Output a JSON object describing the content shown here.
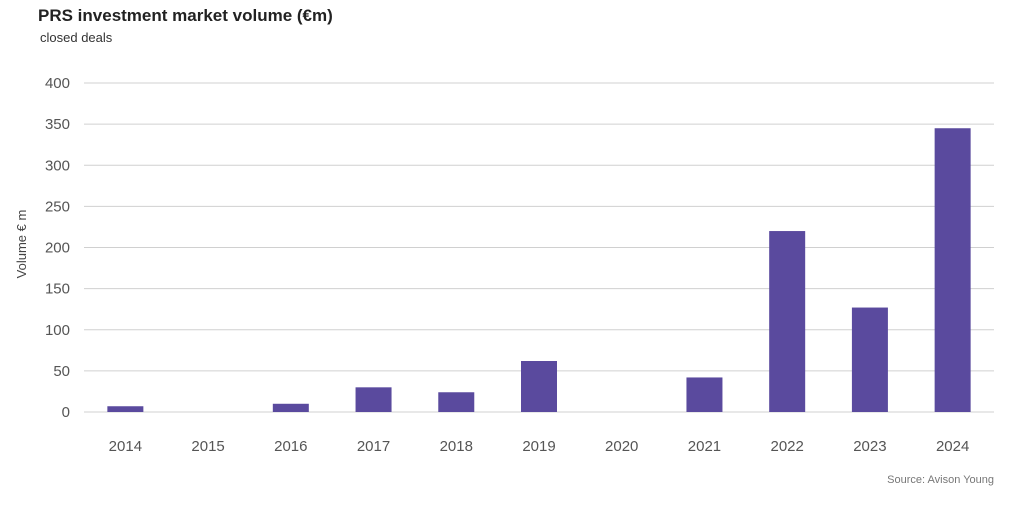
{
  "chart_data": {
    "type": "bar",
    "title": "PRS investment market volume (€m)",
    "subtitle": "closed deals",
    "ylabel": "Volume € m",
    "xlabel": "",
    "categories": [
      "2014",
      "2015",
      "2016",
      "2017",
      "2018",
      "2019",
      "2020",
      "2021",
      "2022",
      "2023",
      "2024"
    ],
    "values": [
      7,
      0,
      10,
      30,
      24,
      62,
      0,
      42,
      220,
      127,
      345
    ],
    "ylim": [
      0,
      400
    ],
    "yticks": [
      0,
      50,
      100,
      150,
      200,
      250,
      300,
      350,
      400
    ],
    "grid": true,
    "legend": "none",
    "bar_color": "#5a4a9e",
    "grid_color": "#d0d0d0"
  },
  "source": "Source: Avison Young"
}
